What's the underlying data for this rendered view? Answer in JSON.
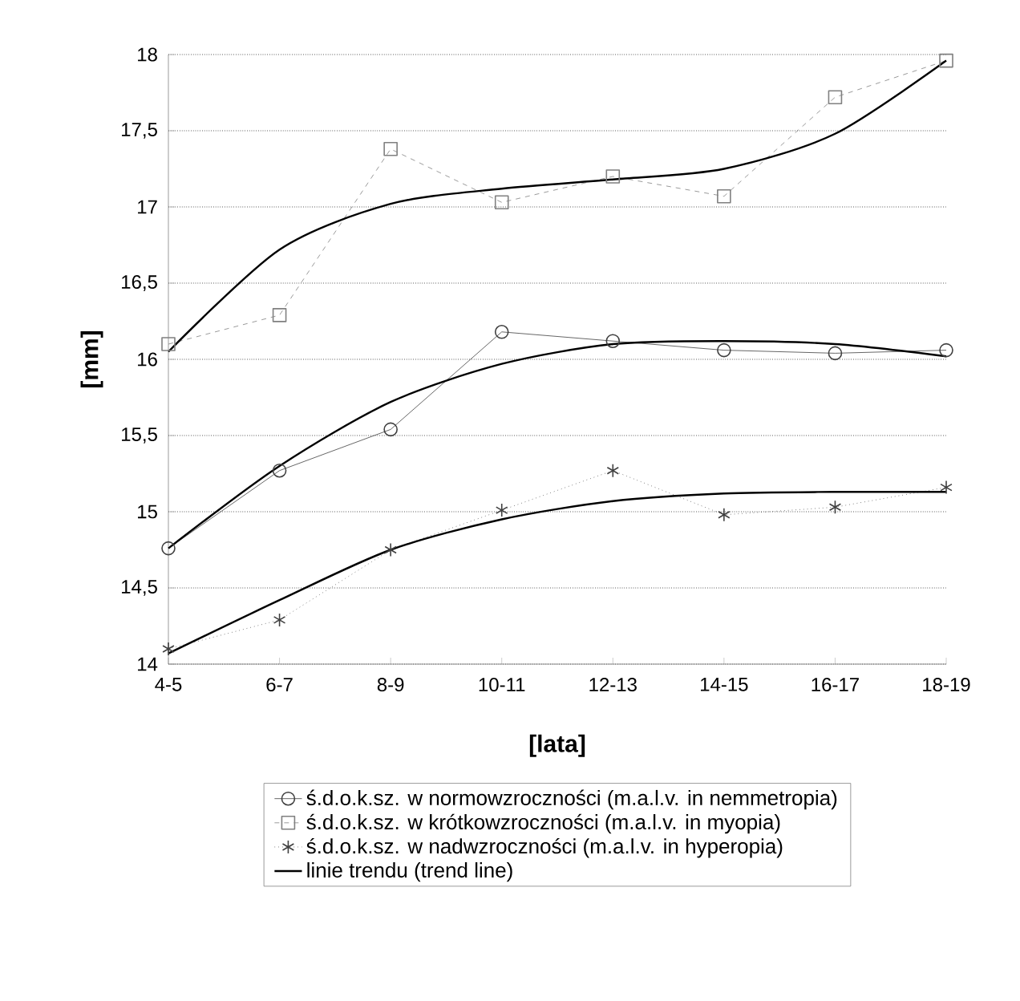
{
  "chart_data": {
    "type": "line",
    "xlabel": "[lata]",
    "ylabel": "[mm]",
    "categories": [
      "4-5",
      "6-7",
      "8-9",
      "10-11",
      "12-13",
      "14-15",
      "16-17",
      "18-19"
    ],
    "series": [
      {
        "name": "ś.d.o.k.sz. w normowzroczności (m.a.l.v. in nemmetropia)",
        "color": "#404040",
        "marker": "circle",
        "line_style": "solid",
        "values": [
          14.76,
          15.27,
          15.54,
          16.18,
          16.12,
          16.06,
          16.04,
          16.06
        ]
      },
      {
        "name": "ś.d.o.k.sz. w krótkowzroczności (m.a.l.v. in myopia)",
        "color": "#808080",
        "marker": "square",
        "line_style": "dashed",
        "values": [
          16.1,
          16.29,
          17.38,
          17.03,
          17.2,
          17.07,
          17.72,
          17.96
        ]
      },
      {
        "name": "ś.d.o.k.sz. w nadwzroczności (m.a.l.v. in hyperopia)",
        "color": "#404040",
        "marker": "cross",
        "line_style": "dotted",
        "values": [
          14.1,
          14.29,
          14.75,
          15.01,
          15.27,
          14.98,
          15.03,
          15.16
        ]
      },
      {
        "name": "linie trendu (trend line)",
        "color": "#000000",
        "marker": "none",
        "line_style": "solid",
        "values": [
          14.76,
          15.3,
          15.72,
          15.97,
          16.1,
          16.12,
          16.1,
          16.02
        ]
      },
      {
        "color": "#000000",
        "marker": "none",
        "line_style": "solid",
        "values": [
          16.05,
          16.72,
          17.02,
          17.12,
          17.18,
          17.25,
          17.48,
          17.96
        ]
      },
      {
        "color": "#000000",
        "marker": "none",
        "line_style": "solid",
        "values": [
          14.07,
          14.42,
          14.75,
          14.95,
          15.07,
          15.12,
          15.13,
          15.13
        ]
      }
    ],
    "ylim": [
      14,
      18
    ],
    "yticks": [
      14,
      {
        "value": 14.5,
        "label": "14,5"
      },
      15,
      {
        "value": 15.5,
        "label": "15,5"
      },
      16,
      {
        "value": 16.5,
        "label": "16,5"
      },
      17,
      {
        "value": 17.5,
        "label": "17,5"
      },
      18
    ],
    "grid": "y",
    "legend": "bottom"
  }
}
